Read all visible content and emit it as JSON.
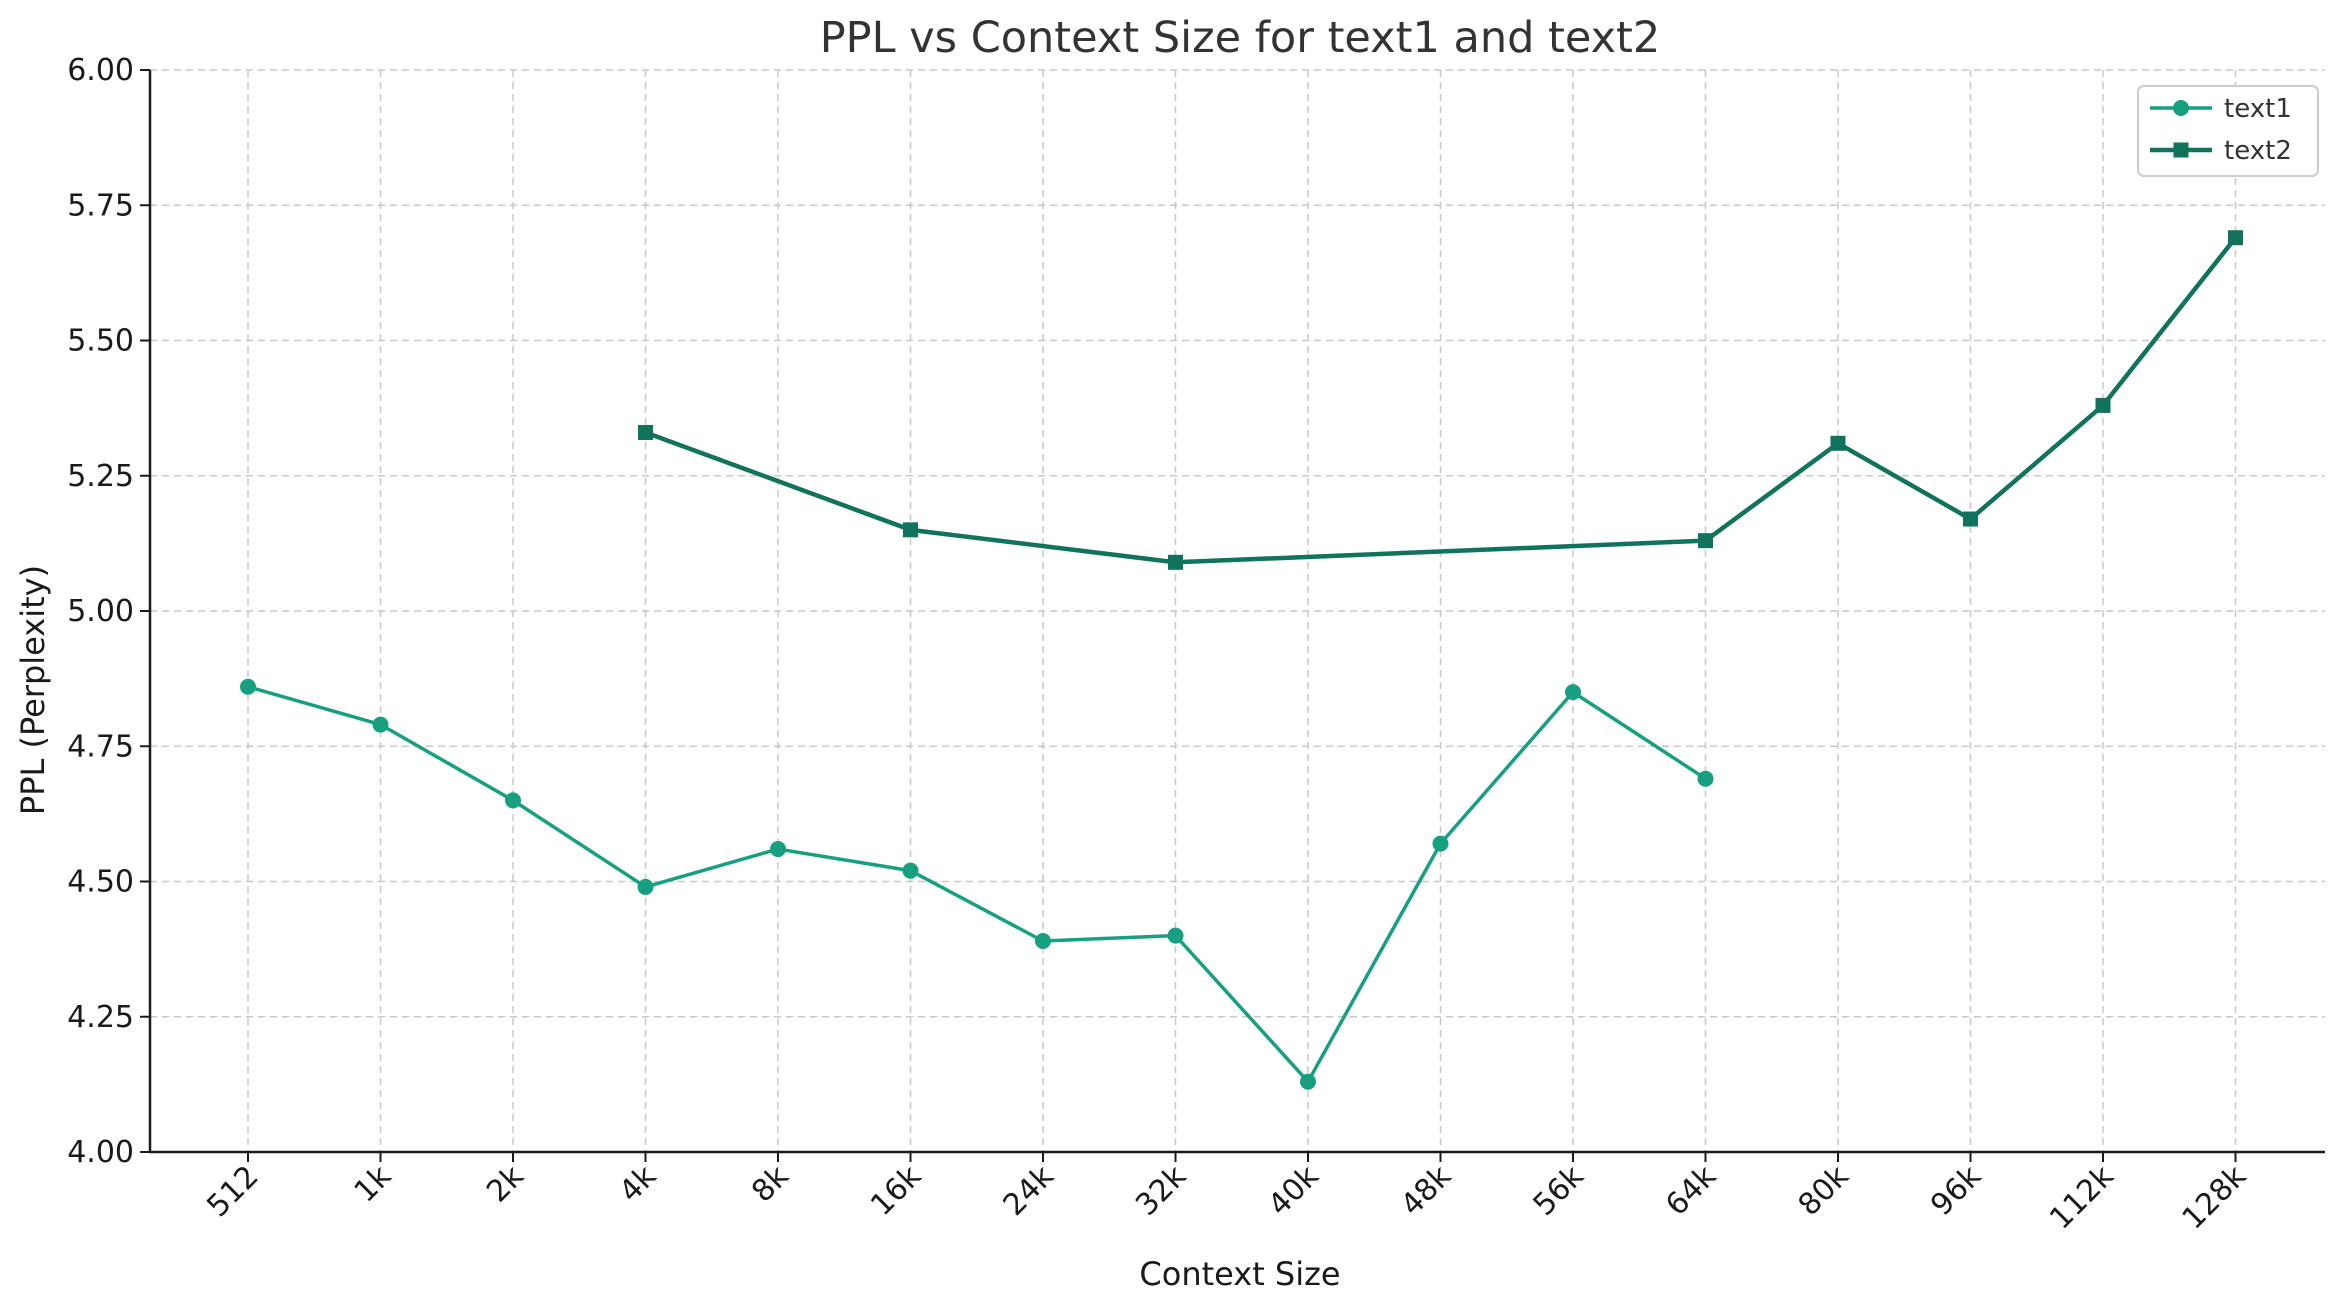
{
  "chart_data": {
    "type": "line",
    "title": "PPL vs Context Size for text1 and text2",
    "xlabel": "Context Size",
    "ylabel": "PPL (Perplexity)",
    "categories": [
      "512",
      "1k",
      "2k",
      "4k",
      "8k",
      "16k",
      "24k",
      "32k",
      "40k",
      "48k",
      "56k",
      "64k",
      "80k",
      "96k",
      "112k",
      "128k"
    ],
    "ylim": [
      4.0,
      6.0
    ],
    "yticks": [
      "4.00",
      "4.25",
      "4.50",
      "4.75",
      "5.00",
      "5.25",
      "5.50",
      "5.75",
      "6.00"
    ],
    "grid": true,
    "legend_position": "top-right",
    "series": [
      {
        "name": "text1",
        "marker": "circle",
        "color": "#17a07f",
        "values": [
          4.86,
          4.79,
          4.65,
          4.49,
          4.56,
          4.52,
          4.39,
          4.4,
          4.13,
          4.57,
          4.85,
          4.69,
          null,
          null,
          null,
          null
        ]
      },
      {
        "name": "text2",
        "marker": "square",
        "color": "#11735c",
        "values": [
          null,
          null,
          null,
          5.33,
          null,
          5.15,
          null,
          5.09,
          null,
          null,
          null,
          5.13,
          5.31,
          5.17,
          5.38,
          5.69
        ]
      }
    ]
  }
}
